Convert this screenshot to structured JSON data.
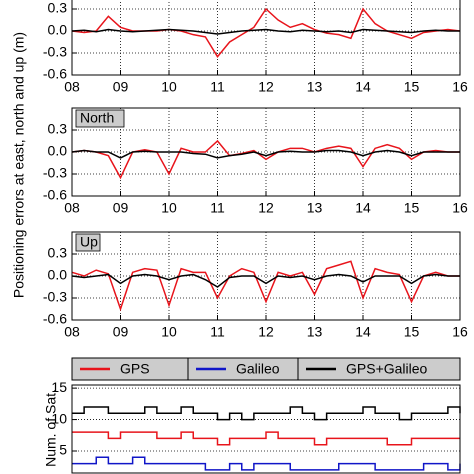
{
  "chart_data": [
    {
      "type": "line",
      "ylabel": "Positioning errors at east, north and up (m)",
      "x": [
        8,
        8.25,
        8.5,
        8.75,
        9,
        9.25,
        9.5,
        9.75,
        10,
        10.25,
        10.5,
        10.75,
        11,
        11.25,
        11.5,
        11.75,
        12,
        12.25,
        12.5,
        12.75,
        13,
        13.25,
        13.5,
        13.75,
        14,
        14.25,
        14.5,
        14.75,
        15,
        15.25,
        15.5,
        15.75,
        16
      ],
      "xlim": [
        8,
        16
      ],
      "xticks": [
        {
          "value": 8,
          "label": "08"
        },
        {
          "value": 9,
          "label": "09"
        },
        10,
        11,
        12,
        13,
        14,
        15,
        16
      ],
      "ylim": [
        -0.6,
        0.6
      ],
      "yticks": [
        -0.6,
        -0.3,
        {
          "value": 0,
          "label": "0.0"
        },
        0.3
      ],
      "grid": true,
      "series": [
        {
          "color": "#e8141b",
          "values": [
            0.0,
            -0.02,
            0.0,
            0.2,
            0.05,
            0.0,
            0.0,
            0.0,
            0.02,
            0.0,
            -0.05,
            -0.08,
            -0.35,
            -0.15,
            -0.05,
            0.05,
            0.3,
            0.15,
            0.05,
            0.1,
            0.02,
            -0.03,
            -0.05,
            -0.1,
            0.3,
            0.1,
            0.0,
            -0.05,
            -0.1,
            -0.02,
            0.0,
            0.02,
            0.0
          ]
        },
        {
          "color": "#000000",
          "values": [
            0,
            0.01,
            -0.01,
            0.02,
            0.0,
            -0.01,
            0.0,
            0.01,
            0.02,
            0.01,
            0.0,
            -0.02,
            -0.04,
            -0.02,
            0.0,
            0.01,
            0.02,
            0.0,
            -0.01,
            0.01,
            0.0,
            -0.01,
            0.0,
            -0.02,
            0.02,
            0.01,
            0.0,
            -0.01,
            -0.02,
            0.0,
            0.01,
            0.0,
            0.0
          ]
        }
      ]
    },
    {
      "type": "line",
      "title": "North",
      "x": [
        8,
        8.25,
        8.5,
        8.75,
        9,
        9.25,
        9.5,
        9.75,
        10,
        10.25,
        10.5,
        10.75,
        11,
        11.25,
        11.5,
        11.75,
        12,
        12.25,
        12.5,
        12.75,
        13,
        13.25,
        13.5,
        13.75,
        14,
        14.25,
        14.5,
        14.75,
        15,
        15.25,
        15.5,
        15.75,
        16
      ],
      "xlim": [
        8,
        16
      ],
      "xticks": [
        {
          "value": 8,
          "label": "08"
        },
        {
          "value": 9,
          "label": "09"
        },
        10,
        11,
        12,
        13,
        14,
        15,
        16
      ],
      "ylim": [
        -0.6,
        0.6
      ],
      "yticks": [
        -0.6,
        -0.3,
        {
          "value": 0,
          "label": "0.0"
        },
        0.3
      ],
      "grid": true,
      "series": [
        {
          "color": "#e8141b",
          "values": [
            0.0,
            0.02,
            0.0,
            -0.05,
            -0.35,
            0.0,
            0.03,
            0.0,
            -0.3,
            0.05,
            0.0,
            0.0,
            0.15,
            -0.05,
            -0.02,
            0.02,
            -0.1,
            0.0,
            0.05,
            0.05,
            0.0,
            0.05,
            0.08,
            0.05,
            -0.2,
            0.05,
            0.1,
            0.05,
            -0.1,
            0.0,
            0.02,
            0.0,
            0.0
          ]
        },
        {
          "color": "#000000",
          "values": [
            0.0,
            0.02,
            0.0,
            0.0,
            -0.08,
            0.0,
            0.01,
            0.0,
            0.0,
            0.0,
            -0.02,
            -0.03,
            -0.08,
            -0.05,
            -0.03,
            0.0,
            -0.05,
            0.0,
            0.01,
            0.0,
            0.0,
            0.02,
            0.02,
            0.0,
            -0.05,
            0.0,
            0.02,
            0.0,
            -0.05,
            0.0,
            0.0,
            0.0,
            0.0
          ]
        }
      ]
    },
    {
      "type": "line",
      "title": "Up",
      "x": [
        8,
        8.25,
        8.5,
        8.75,
        9,
        9.25,
        9.5,
        9.75,
        10,
        10.25,
        10.5,
        10.75,
        11,
        11.25,
        11.5,
        11.75,
        12,
        12.25,
        12.5,
        12.75,
        13,
        13.25,
        13.5,
        13.75,
        14,
        14.25,
        14.5,
        14.75,
        15,
        15.25,
        15.5,
        15.75,
        16
      ],
      "xlim": [
        8,
        16
      ],
      "xticks": [
        {
          "value": 8,
          "label": "08"
        },
        {
          "value": 9,
          "label": "09"
        },
        10,
        11,
        12,
        13,
        14,
        15,
        16
      ],
      "ylim": [
        -0.6,
        0.6
      ],
      "yticks": [
        -0.6,
        -0.3,
        {
          "value": 0,
          "label": "0.0"
        },
        0.3
      ],
      "grid": true,
      "series": [
        {
          "color": "#e8141b",
          "values": [
            0.05,
            0.0,
            0.08,
            0.03,
            -0.45,
            0.05,
            0.1,
            0.08,
            -0.4,
            0.1,
            0.05,
            0.05,
            -0.3,
            0.0,
            0.1,
            0.05,
            -0.35,
            0.05,
            0.0,
            0.05,
            -0.25,
            0.1,
            0.15,
            0.2,
            -0.3,
            0.1,
            0.05,
            0.02,
            -0.35,
            0.0,
            0.05,
            0.0,
            0.0
          ]
        },
        {
          "color": "#000000",
          "values": [
            0.0,
            -0.02,
            0.0,
            0.02,
            -0.1,
            0.0,
            0.02,
            0.0,
            -0.05,
            0.0,
            0.02,
            -0.05,
            -0.15,
            -0.02,
            0.0,
            0.0,
            -0.1,
            0.0,
            -0.02,
            0.0,
            -0.05,
            0.0,
            0.02,
            0.0,
            -0.08,
            0.0,
            0.0,
            0.0,
            -0.1,
            0.0,
            0.02,
            0.0,
            0.0
          ]
        }
      ]
    },
    {
      "type": "step",
      "ylabel": "Num. of Sat.",
      "x": [
        8,
        8.25,
        8.5,
        8.75,
        9,
        9.25,
        9.5,
        9.75,
        10,
        10.25,
        10.5,
        10.75,
        11,
        11.25,
        11.5,
        11.75,
        12,
        12.25,
        12.5,
        12.75,
        13,
        13.25,
        13.5,
        13.75,
        14,
        14.25,
        14.5,
        14.75,
        15,
        15.25,
        15.5,
        15.75,
        16
      ],
      "xlim": [
        8,
        16
      ],
      "ylim": [
        1.5,
        15.5
      ],
      "yticks": [
        5,
        10,
        15
      ],
      "grid": true,
      "series": [
        {
          "name": "GPS",
          "color": "#e8141b",
          "values": [
            8,
            8,
            8,
            7,
            8,
            8,
            8,
            7,
            7,
            8,
            7,
            7,
            6,
            7,
            7,
            7,
            8,
            7,
            7,
            7,
            6,
            7,
            7,
            7,
            7,
            7,
            6,
            6,
            7,
            7,
            7,
            7,
            7
          ]
        },
        {
          "name": "Galileo",
          "color": "#1016c8",
          "values": [
            3,
            3,
            4,
            3,
            3,
            4,
            3,
            3,
            3,
            3,
            3,
            2,
            2,
            3,
            2,
            3,
            3,
            3,
            2,
            2,
            2,
            2,
            3,
            3,
            3,
            2,
            2,
            2,
            2,
            3,
            3,
            2,
            3
          ]
        },
        {
          "name": "GPS+Galileo",
          "color": "#000000",
          "values": [
            11,
            12,
            12,
            11,
            11,
            11,
            12,
            11,
            11,
            12,
            11,
            11,
            10,
            11,
            10,
            11,
            11,
            11,
            12,
            11,
            10,
            11,
            11,
            11,
            12,
            11,
            11,
            10,
            11,
            11,
            11,
            12,
            11
          ]
        }
      ]
    }
  ]
}
